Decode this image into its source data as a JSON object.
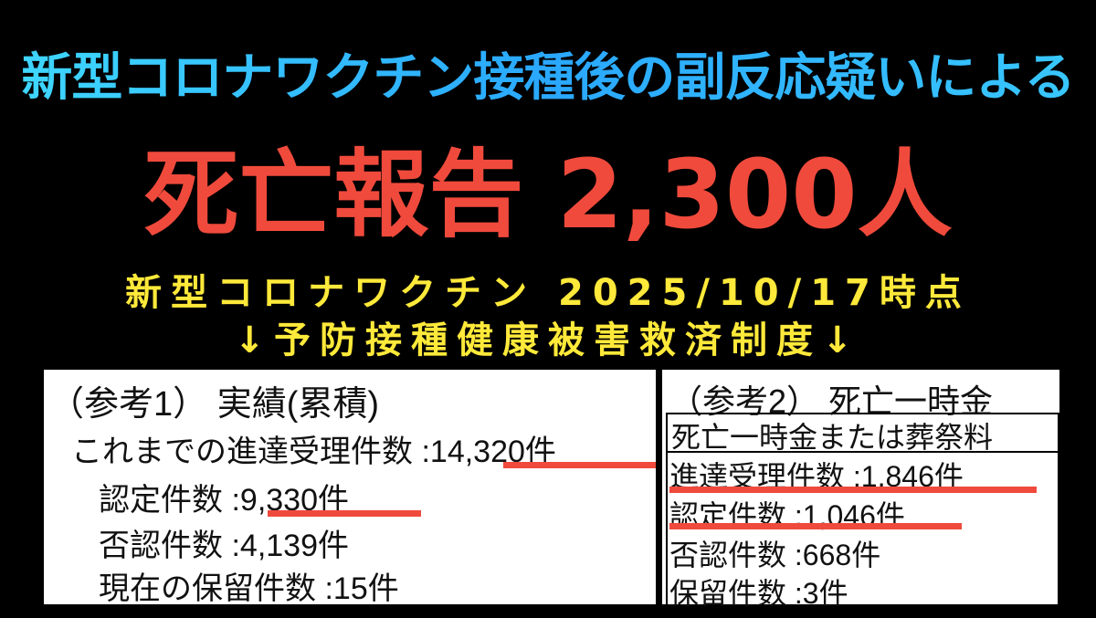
{
  "headline": "新型コロナワクチン接種後の副反応疑いによる",
  "big_title": "死亡報告 2,300人",
  "subtitle_line1": "新型コロナワクチン 2025/10/17時点",
  "subtitle_line2": "↓予防接種健康被害救済制度↓",
  "colors": {
    "headline": "#2aa8ff",
    "big_title": "#f04a3c",
    "subtitle": "#ffe93a",
    "underline": "#f04a3c"
  },
  "ref1": {
    "title": "（参考1） 実績(累積)",
    "rows": [
      {
        "label": "これまでの進達受理件数",
        "value": "14,320件"
      },
      {
        "label": "認定件数",
        "value": "9,330件"
      },
      {
        "label": "否認件数",
        "value": "4,139件"
      },
      {
        "label": "現在の保留件数",
        "value": "15件"
      }
    ]
  },
  "ref2": {
    "title": "（参考2） 死亡一時金",
    "header": "死亡一時金または葬祭料",
    "rows": [
      {
        "label": "進達受理件数",
        "value": "1,846件"
      },
      {
        "label": "認定件数",
        "value": "1,046件"
      },
      {
        "label": "否認件数",
        "value": "668件"
      },
      {
        "label": "保留件数",
        "value": "3件"
      }
    ]
  }
}
